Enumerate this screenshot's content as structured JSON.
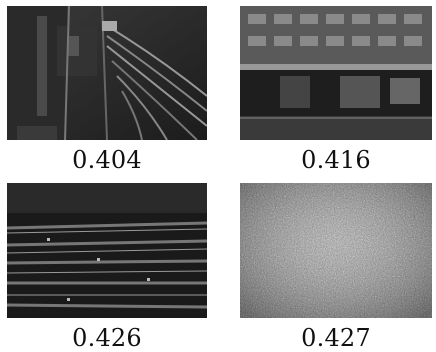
{
  "images": [
    {
      "label": "0.404",
      "scene": "aerial view of railway tracks"
    },
    {
      "label": "0.416",
      "scene": "building storefront with street"
    },
    {
      "label": "0.426",
      "scene": "rows of parallel structures"
    },
    {
      "label": "0.427",
      "scene": "noisy gravel texture"
    }
  ]
}
